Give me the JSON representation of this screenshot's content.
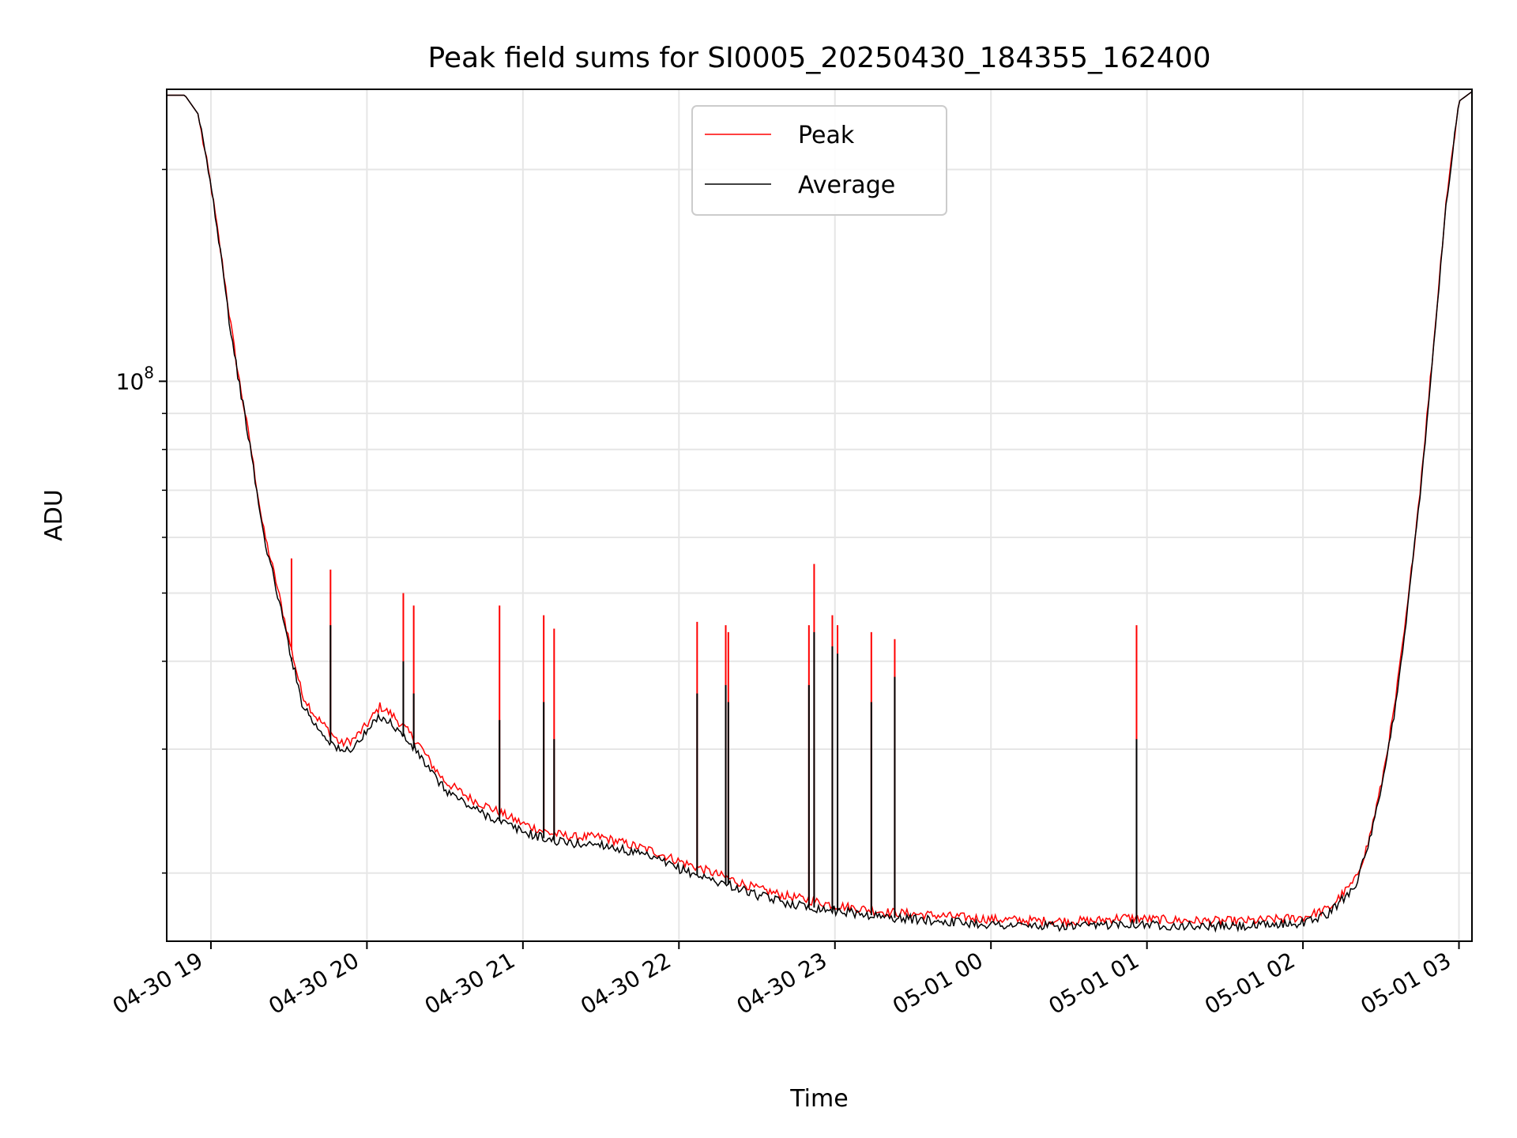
{
  "chart_data": {
    "type": "line",
    "title": "Peak field sums for SI0005_20250430_184355_162400",
    "xlabel": "Time",
    "ylabel": "ADU",
    "yscale": "log",
    "grid": true,
    "legend_position": "upper-center",
    "x_range": [
      "2025-04-30 18:43",
      "2025-05-01 03:05"
    ],
    "y_range": [
      16000000.0,
      260000000.0
    ],
    "x_ticks": [
      {
        "t": "2025-04-30 19:00",
        "label": "04-30 19"
      },
      {
        "t": "2025-04-30 20:00",
        "label": "04-30 20"
      },
      {
        "t": "2025-04-30 21:00",
        "label": "04-30 21"
      },
      {
        "t": "2025-04-30 22:00",
        "label": "04-30 22"
      },
      {
        "t": "2025-04-30 23:00",
        "label": "04-30 23"
      },
      {
        "t": "2025-05-01 00:00",
        "label": "05-01 00"
      },
      {
        "t": "2025-05-01 01:00",
        "label": "05-01 01"
      },
      {
        "t": "2025-05-01 02:00",
        "label": "05-01 02"
      },
      {
        "t": "2025-05-01 03:00",
        "label": "05-01 03"
      }
    ],
    "y_major_ticks": [
      {
        "value": 100000000,
        "label_base": "10",
        "label_exp": "8"
      }
    ],
    "y_minor_ticks": [
      20000000.0,
      30000000.0,
      40000000.0,
      50000000.0,
      60000000.0,
      70000000.0,
      80000000.0,
      90000000.0,
      200000000.0
    ],
    "series": [
      {
        "name": "Peak",
        "color": "#ff0000",
        "points": [
          [
            "2025-04-30 18:43",
            255000000.0
          ],
          [
            "2025-04-30 18:50",
            255000000.0
          ],
          [
            "2025-04-30 18:55",
            240000000.0
          ],
          [
            "2025-04-30 19:00",
            190000000.0
          ],
          [
            "2025-04-30 19:05",
            142000000.0
          ],
          [
            "2025-04-30 19:07",
            125000000.0
          ],
          [
            "2025-04-30 19:10",
            105000000.0
          ],
          [
            "2025-04-30 19:15",
            82000000.0
          ],
          [
            "2025-04-30 19:20",
            62000000.0
          ],
          [
            "2025-04-30 19:25",
            52000000.0
          ],
          [
            "2025-04-30 19:30",
            43000000.0
          ],
          [
            "2025-04-30 19:35",
            36000000.0
          ],
          [
            "2025-04-30 19:40",
            33500000.0
          ],
          [
            "2025-04-30 19:45",
            32000000.0
          ],
          [
            "2025-04-30 19:50",
            30500000.0
          ],
          [
            "2025-04-30 19:55",
            31000000.0
          ],
          [
            "2025-04-30 20:00",
            32500000.0
          ],
          [
            "2025-04-30 20:05",
            34500000.0
          ],
          [
            "2025-04-30 20:10",
            33500000.0
          ],
          [
            "2025-04-30 20:15",
            32000000.0
          ],
          [
            "2025-04-30 20:20",
            30500000.0
          ],
          [
            "2025-04-30 20:25",
            28500000.0
          ],
          [
            "2025-04-30 20:30",
            27000000.0
          ],
          [
            "2025-04-30 20:40",
            25500000.0
          ],
          [
            "2025-04-30 20:50",
            24500000.0
          ],
          [
            "2025-04-30 21:00",
            23500000.0
          ],
          [
            "2025-04-30 21:10",
            22800000.0
          ],
          [
            "2025-04-30 21:20",
            22500000.0
          ],
          [
            "2025-04-30 21:30",
            22500000.0
          ],
          [
            "2025-04-30 21:40",
            22000000.0
          ],
          [
            "2025-04-30 21:50",
            21500000.0
          ],
          [
            "2025-04-30 22:00",
            20800000.0
          ],
          [
            "2025-04-30 22:10",
            20200000.0
          ],
          [
            "2025-04-30 22:20",
            19600000.0
          ],
          [
            "2025-04-30 22:30",
            19000000.0
          ],
          [
            "2025-04-30 22:40",
            18600000.0
          ],
          [
            "2025-04-30 22:50",
            18300000.0
          ],
          [
            "2025-04-30 23:00",
            18000000.0
          ],
          [
            "2025-04-30 23:10",
            17800000.0
          ],
          [
            "2025-04-30 23:20",
            17600000.0
          ],
          [
            "2025-04-30 23:40",
            17400000.0
          ],
          [
            "2025-05-01 00:00",
            17200000.0
          ],
          [
            "2025-05-01 00:20",
            17100000.0
          ],
          [
            "2025-05-01 00:40",
            17100000.0
          ],
          [
            "2025-05-01 00:50",
            17300000.0
          ],
          [
            "2025-05-01 01:00",
            17200000.0
          ],
          [
            "2025-05-01 01:20",
            17100000.0
          ],
          [
            "2025-05-01 01:40",
            17100000.0
          ],
          [
            "2025-05-01 02:00",
            17300000.0
          ],
          [
            "2025-05-01 02:10",
            17800000.0
          ],
          [
            "2025-05-01 02:20",
            19500000.0
          ],
          [
            "2025-05-01 02:25",
            22000000.0
          ],
          [
            "2025-05-01 02:30",
            26500000.0
          ],
          [
            "2025-05-01 02:35",
            34000000.0
          ],
          [
            "2025-05-01 02:40",
            47000000.0
          ],
          [
            "2025-05-01 02:45",
            70000000.0
          ],
          [
            "2025-05-01 02:50",
            110000000.0
          ],
          [
            "2025-05-01 02:55",
            180000000.0
          ],
          [
            "2025-05-01 03:00",
            250000000.0
          ],
          [
            "2025-05-01 03:05",
            258000000.0
          ]
        ],
        "spikes": [
          [
            "2025-04-30 19:31",
            56000000.0
          ],
          [
            "2025-04-30 19:46",
            54000000.0
          ],
          [
            "2025-04-30 20:14",
            50000000.0
          ],
          [
            "2025-04-30 20:18",
            48000000.0
          ],
          [
            "2025-04-30 20:51",
            48000000.0
          ],
          [
            "2025-04-30 21:08",
            46500000.0
          ],
          [
            "2025-04-30 21:12",
            44500000.0
          ],
          [
            "2025-04-30 22:07",
            45500000.0
          ],
          [
            "2025-04-30 22:18",
            45000000.0
          ],
          [
            "2025-04-30 22:19",
            44000000.0
          ],
          [
            "2025-04-30 22:50",
            45000000.0
          ],
          [
            "2025-04-30 22:52",
            55000000.0
          ],
          [
            "2025-04-30 22:59",
            46500000.0
          ],
          [
            "2025-04-30 23:01",
            45000000.0
          ],
          [
            "2025-04-30 23:14",
            44000000.0
          ],
          [
            "2025-04-30 23:23",
            43000000.0
          ],
          [
            "2025-05-01 00:56",
            45000000.0
          ]
        ]
      },
      {
        "name": "Average",
        "color": "#000000",
        "points": [
          [
            "2025-04-30 18:43",
            255000000.0
          ],
          [
            "2025-04-30 18:50",
            255000000.0
          ],
          [
            "2025-04-30 18:55",
            240000000.0
          ],
          [
            "2025-04-30 19:00",
            190000000.0
          ],
          [
            "2025-04-30 19:05",
            142000000.0
          ],
          [
            "2025-04-30 19:07",
            122000000.0
          ],
          [
            "2025-04-30 19:10",
            104000000.0
          ],
          [
            "2025-04-30 19:15",
            81000000.0
          ],
          [
            "2025-04-30 19:20",
            61000000.0
          ],
          [
            "2025-04-30 19:25",
            51000000.0
          ],
          [
            "2025-04-30 19:30",
            42000000.0
          ],
          [
            "2025-04-30 19:35",
            35000000.0
          ],
          [
            "2025-04-30 19:40",
            32500000.0
          ],
          [
            "2025-04-30 19:45",
            31000000.0
          ],
          [
            "2025-04-30 19:50",
            29700000.0
          ],
          [
            "2025-04-30 19:55",
            30200000.0
          ],
          [
            "2025-04-30 20:00",
            31700000.0
          ],
          [
            "2025-04-30 20:05",
            33500000.0
          ],
          [
            "2025-04-30 20:10",
            32500000.0
          ],
          [
            "2025-04-30 20:15",
            31000000.0
          ],
          [
            "2025-04-30 20:20",
            29500000.0
          ],
          [
            "2025-04-30 20:25",
            27700000.0
          ],
          [
            "2025-04-30 20:30",
            26300000.0
          ],
          [
            "2025-04-30 20:40",
            24800000.0
          ],
          [
            "2025-04-30 20:50",
            23800000.0
          ],
          [
            "2025-04-30 21:00",
            22900000.0
          ],
          [
            "2025-04-30 21:10",
            22300000.0
          ],
          [
            "2025-04-30 21:20",
            22000000.0
          ],
          [
            "2025-04-30 21:30",
            22000000.0
          ],
          [
            "2025-04-30 21:40",
            21500000.0
          ],
          [
            "2025-04-30 21:50",
            21000000.0
          ],
          [
            "2025-04-30 22:00",
            20300000.0
          ],
          [
            "2025-04-30 22:10",
            19700000.0
          ],
          [
            "2025-04-30 22:20",
            19200000.0
          ],
          [
            "2025-04-30 22:30",
            18600000.0
          ],
          [
            "2025-04-30 22:40",
            18200000.0
          ],
          [
            "2025-04-30 22:50",
            17900000.0
          ],
          [
            "2025-04-30 23:00",
            17700000.0
          ],
          [
            "2025-04-30 23:10",
            17500000.0
          ],
          [
            "2025-04-30 23:20",
            17300000.0
          ],
          [
            "2025-04-30 23:40",
            17100000.0
          ],
          [
            "2025-05-01 00:00",
            16900000.0
          ],
          [
            "2025-05-01 00:20",
            16800000.0
          ],
          [
            "2025-05-01 00:40",
            16800000.0
          ],
          [
            "2025-05-01 00:50",
            17000000.0
          ],
          [
            "2025-05-01 01:00",
            16900000.0
          ],
          [
            "2025-05-01 01:20",
            16800000.0
          ],
          [
            "2025-05-01 01:40",
            16800000.0
          ],
          [
            "2025-05-01 02:00",
            17000000.0
          ],
          [
            "2025-05-01 02:10",
            17500000.0
          ],
          [
            "2025-05-01 02:20",
            19200000.0
          ],
          [
            "2025-05-01 02:25",
            21700000.0
          ],
          [
            "2025-05-01 02:30",
            26000000.0
          ],
          [
            "2025-05-01 02:35",
            33500000.0
          ],
          [
            "2025-05-01 02:40",
            46500000.0
          ],
          [
            "2025-05-01 02:45",
            69000000.0
          ],
          [
            "2025-05-01 02:50",
            109000000.0
          ],
          [
            "2025-05-01 02:55",
            178000000.0
          ],
          [
            "2025-05-01 03:00",
            250000000.0
          ],
          [
            "2025-05-01 03:05",
            258000000.0
          ]
        ],
        "spikes": [
          [
            "2025-04-30 19:31",
            40000000.0
          ],
          [
            "2025-04-30 19:46",
            45000000.0
          ],
          [
            "2025-04-30 20:14",
            40000000.0
          ],
          [
            "2025-04-30 20:18",
            36000000.0
          ],
          [
            "2025-04-30 20:51",
            33000000.0
          ],
          [
            "2025-04-30 21:08",
            35000000.0
          ],
          [
            "2025-04-30 21:12",
            31000000.0
          ],
          [
            "2025-04-30 22:07",
            36000000.0
          ],
          [
            "2025-04-30 22:18",
            37000000.0
          ],
          [
            "2025-04-30 22:19",
            35000000.0
          ],
          [
            "2025-04-30 22:50",
            37000000.0
          ],
          [
            "2025-04-30 22:52",
            44000000.0
          ],
          [
            "2025-04-30 22:59",
            42000000.0
          ],
          [
            "2025-04-30 23:01",
            41000000.0
          ],
          [
            "2025-04-30 23:14",
            35000000.0
          ],
          [
            "2025-04-30 23:23",
            38000000.0
          ],
          [
            "2025-05-01 00:56",
            31000000.0
          ]
        ]
      }
    ]
  }
}
